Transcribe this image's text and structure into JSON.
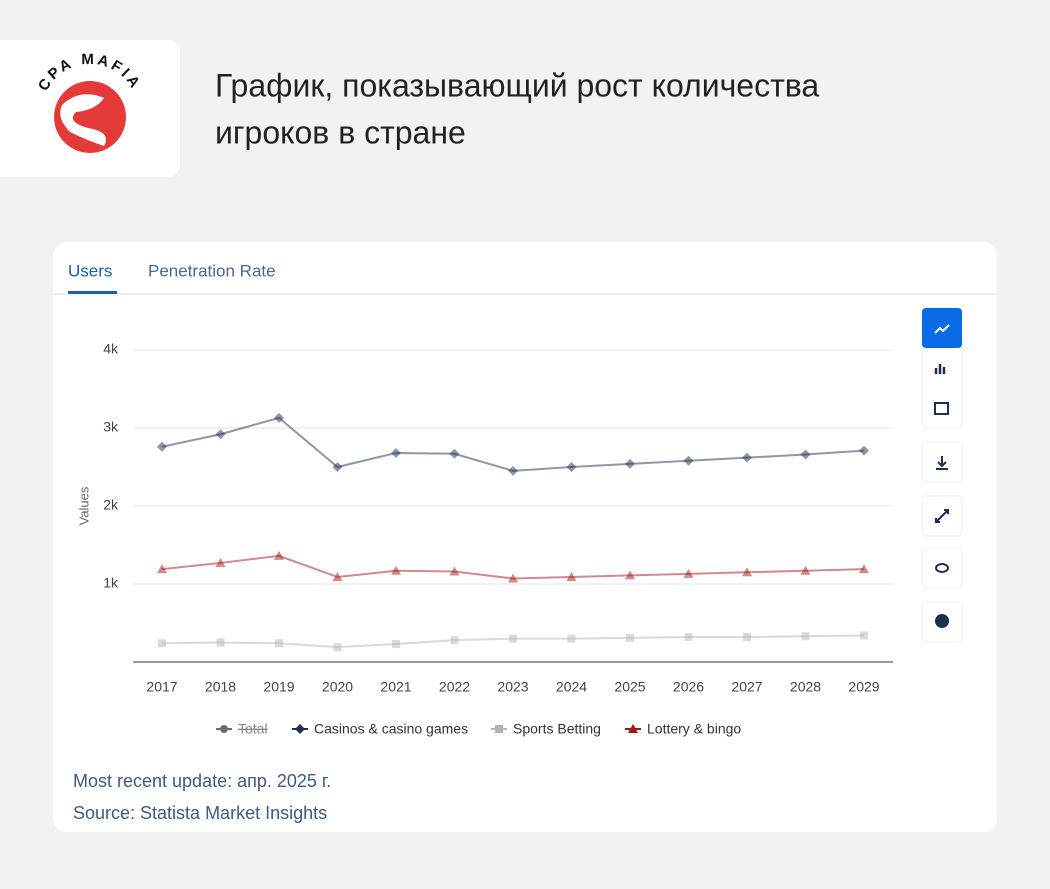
{
  "header": {
    "logo": "CPA MAFIA",
    "title_lines": [
      "График, показывающий рост количества",
      "игроков в стране"
    ]
  },
  "tabs": [
    "Users",
    "Penetration Rate"
  ],
  "chart_data": {
    "type": "line",
    "y_label": "Values",
    "categories": [
      "2017",
      "2018",
      "2019",
      "2020",
      "2021",
      "2022",
      "2023",
      "2024",
      "2025",
      "2026",
      "2027",
      "2028",
      "2029"
    ],
    "series": [
      {
        "name": "Total",
        "color": "#6b6f75",
        "marker": "circle",
        "hidden": true,
        "values": [
          null,
          null,
          null,
          null,
          null,
          null,
          null,
          null,
          null,
          null,
          null,
          null,
          null
        ]
      },
      {
        "name": "Casinos & casino games",
        "color": "#1e3050",
        "marker": "diamond",
        "values": [
          2760,
          2920,
          3130,
          2500,
          2680,
          2670,
          2450,
          2500,
          2540,
          2580,
          2620,
          2660,
          2710
        ]
      },
      {
        "name": "Sports Betting",
        "color": "#b5b5b5",
        "marker": "square",
        "values": [
          240,
          250,
          240,
          190,
          230,
          280,
          300,
          300,
          310,
          320,
          320,
          330,
          340
        ]
      },
      {
        "name": "Lottery & bingo",
        "color": "#a31515",
        "marker": "triangle",
        "values": [
          1190,
          1270,
          1360,
          1090,
          1170,
          1160,
          1070,
          1090,
          1110,
          1130,
          1150,
          1170,
          1190
        ]
      }
    ],
    "ylim": [
      0,
      4000
    ],
    "yticks": [
      {
        "value": 1000,
        "label": "1k"
      },
      {
        "value": 2000,
        "label": "2k"
      },
      {
        "value": 3000,
        "label": "3k"
      },
      {
        "value": 4000,
        "label": "4k"
      }
    ],
    "grid": true
  },
  "footer": [
    "Most recent update: апр. 2025 г.",
    "Source: Statista Market Insights"
  ]
}
